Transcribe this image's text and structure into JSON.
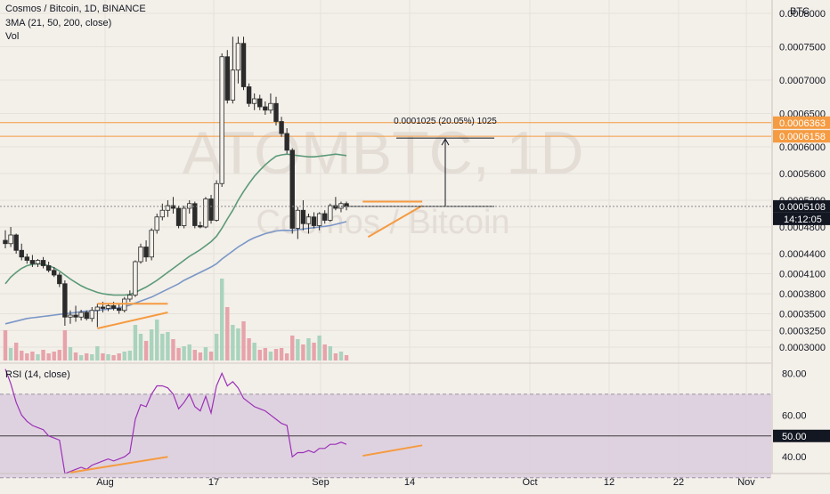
{
  "header": {
    "symbol_line": "Cosmos / Bitcoin, 1D, BINANCE",
    "indicator_line": "3MA (21, 50, 200, close)",
    "volume_label": "Vol",
    "watermark_ticker": "ATOMBTC, 1D",
    "watermark_name": "Cosmos / Bitcoin",
    "currency": "BTC",
    "rsi_label": "RSI (14, close)"
  },
  "chart_data": [
    {
      "type": "candlestick",
      "title": "Cosmos / Bitcoin, 1D, BINANCE",
      "yunit": "BTC",
      "ylim": [
        0.00028,
        0.00082
      ],
      "y_ticks": [
        "0.0003000",
        "0.0003250",
        "0.0003500",
        "0.0003800",
        "0.0004100",
        "0.0004400",
        "0.0004800",
        "0.0005200",
        "0.0005600",
        "0.0006000",
        "0.0006500",
        "0.0007000",
        "0.0007500",
        "0.0008000"
      ],
      "y_tick_values": [
        0.0003,
        0.000325,
        0.00035,
        0.00038,
        0.00041,
        0.00044,
        0.00048,
        0.00052,
        0.00056,
        0.0006,
        0.00065,
        0.0007,
        0.00075,
        0.0008
      ],
      "x_ticks": [
        "Aug",
        "17",
        "Sep",
        "14",
        "Oct",
        "12",
        "22",
        "Nov"
      ],
      "candles": [
        [
          0.00046,
          0.000475,
          0.000448,
          0.000455
        ],
        [
          0.000455,
          0.00048,
          0.00045,
          0.000468
        ],
        [
          0.000468,
          0.00047,
          0.00044,
          0.000445
        ],
        [
          0.000445,
          0.000455,
          0.00043,
          0.000435
        ],
        [
          0.000435,
          0.00044,
          0.000425,
          0.00043
        ],
        [
          0.00043,
          0.000438,
          0.00042,
          0.000425
        ],
        [
          0.000425,
          0.000432,
          0.00042,
          0.00043
        ],
        [
          0.00043,
          0.000435,
          0.000418,
          0.000422
        ],
        [
          0.000422,
          0.000428,
          0.000412,
          0.000415
        ],
        [
          0.000415,
          0.00042,
          0.000405,
          0.000408
        ],
        [
          0.000408,
          0.000412,
          0.00039,
          0.000395
        ],
        [
          0.000395,
          0.0004,
          0.000332,
          0.000345
        ],
        [
          0.000345,
          0.000355,
          0.000335,
          0.000348
        ],
        [
          0.000348,
          0.000362,
          0.000338,
          0.000345
        ],
        [
          0.000345,
          0.000356,
          0.00034,
          0.000352
        ],
        [
          0.000352,
          0.000355,
          0.00034,
          0.000343
        ],
        [
          0.000343,
          0.00036,
          0.000338,
          0.000355
        ],
        [
          0.000355,
          0.000365,
          0.00033,
          0.00036
        ],
        [
          0.00036,
          0.000368,
          0.000352,
          0.000358
        ],
        [
          0.000358,
          0.000365,
          0.000354,
          0.000362
        ],
        [
          0.000362,
          0.000368,
          0.000355,
          0.000358
        ],
        [
          0.000358,
          0.000366,
          0.00035,
          0.000355
        ],
        [
          0.000355,
          0.000375,
          0.000352,
          0.000372
        ],
        [
          0.000372,
          0.000385,
          0.000368,
          0.000378
        ],
        [
          0.000378,
          0.00043,
          0.000375,
          0.000428
        ],
        [
          0.000428,
          0.000455,
          0.000425,
          0.00045
        ],
        [
          0.00045,
          0.00046,
          0.000428,
          0.000435
        ],
        [
          0.000435,
          0.000478,
          0.00043,
          0.000475
        ],
        [
          0.000475,
          0.0005,
          0.00047,
          0.000495
        ],
        [
          0.000495,
          0.000515,
          0.00049,
          0.000505
        ],
        [
          0.000505,
          0.00052,
          0.000495,
          0.000512
        ],
        [
          0.000512,
          0.000525,
          0.0005,
          0.000508
        ],
        [
          0.000508,
          0.000512,
          0.000478,
          0.000482
        ],
        [
          0.000482,
          0.000512,
          0.000478,
          0.000508
        ],
        [
          0.000508,
          0.00052,
          0.0005,
          0.000515
        ],
        [
          0.000515,
          0.000518,
          0.000478,
          0.000482
        ],
        [
          0.000482,
          0.000488,
          0.000478,
          0.00048
        ],
        [
          0.00048,
          0.000525,
          0.000478,
          0.000522
        ],
        [
          0.000522,
          0.000528,
          0.000485,
          0.00049
        ],
        [
          0.00049,
          0.00055,
          0.000488,
          0.000545
        ],
        [
          0.000545,
          0.00074,
          0.00054,
          0.000735
        ],
        [
          0.000735,
          0.000745,
          0.000665,
          0.00067
        ],
        [
          0.00067,
          0.000765,
          0.000665,
          0.000715
        ],
        [
          0.000715,
          0.000765,
          0.000695,
          0.000755
        ],
        [
          0.000755,
          0.000765,
          0.000685,
          0.00069
        ],
        [
          0.00069,
          0.000695,
          0.00066,
          0.000665
        ],
        [
          0.000665,
          0.00068,
          0.000655,
          0.000672
        ],
        [
          0.000672,
          0.000678,
          0.000655,
          0.00066
        ],
        [
          0.00066,
          0.000668,
          0.000648,
          0.000655
        ],
        [
          0.000655,
          0.00068,
          0.00065,
          0.000665
        ],
        [
          0.000665,
          0.000675,
          0.000632,
          0.000638
        ],
        [
          0.000638,
          0.000645,
          0.000615,
          0.00062
        ],
        [
          0.00062,
          0.000628,
          0.00059,
          0.000595
        ],
        [
          0.000595,
          0.000598,
          0.00047,
          0.000478
        ],
        [
          0.000478,
          0.00051,
          0.000462,
          0.000505
        ],
        [
          0.000505,
          0.00052,
          0.000475,
          0.000485
        ],
        [
          0.000485,
          0.0005,
          0.00047,
          0.000495
        ],
        [
          0.000495,
          0.000502,
          0.000478,
          0.000482
        ],
        [
          0.000482,
          0.000502,
          0.000475,
          0.0005
        ],
        [
          0.0005,
          0.000505,
          0.000485,
          0.00049
        ],
        [
          0.00049,
          0.000515,
          0.000488,
          0.000512
        ],
        [
          0.000512,
          0.000525,
          0.000505,
          0.000508
        ],
        [
          0.000508,
          0.000518,
          0.000502,
          0.000515
        ],
        [
          0.000515,
          0.000518,
          0.000505,
          0.000511
        ]
      ],
      "volume": [
        34,
        14,
        20,
        11,
        8,
        10,
        7,
        12,
        8,
        10,
        12,
        34,
        15,
        9,
        6,
        8,
        7,
        16,
        8,
        7,
        6,
        8,
        10,
        11,
        40,
        30,
        22,
        35,
        46,
        30,
        32,
        24,
        14,
        16,
        18,
        12,
        9,
        15,
        10,
        30,
        92,
        60,
        40,
        36,
        44,
        25,
        20,
        12,
        14,
        10,
        13,
        14,
        8,
        28,
        24,
        18,
        25,
        20,
        28,
        18,
        16,
        8,
        10,
        6
      ],
      "ma": [
        {
          "period": 21,
          "color": "#5b9a78",
          "values": [
            0.000395,
            0.000405,
            0.000412,
            0.000418,
            0.000422,
            0.000424,
            0.000425,
            0.000424,
            0.000422,
            0.000419,
            0.000414,
            0.000408,
            0.000402,
            0.000397,
            0.000392,
            0.000388,
            0.000385,
            0.000382,
            0.00038,
            0.000379,
            0.000378,
            0.000378,
            0.000378,
            0.000379,
            0.000382,
            0.000386,
            0.00039,
            0.000395,
            0.0004,
            0.000406,
            0.000412,
            0.000418,
            0.000424,
            0.00043,
            0.000436,
            0.000441,
            0.000446,
            0.000452,
            0.000458,
            0.000466,
            0.000478,
            0.000492,
            0.000505,
            0.00052,
            0.000533,
            0.000545,
            0.000556,
            0.000565,
            0.000573,
            0.00058,
            0.000586,
            0.000588,
            0.000589,
            0.000588,
            0.000587,
            0.000586,
            0.000585,
            0.000585,
            0.000586,
            0.000587,
            0.000588,
            0.000589,
            0.000588,
            0.000587
          ]
        },
        {
          "period": 50,
          "color": "#7a97c7",
          "values": [
            0.000335,
            0.000337,
            0.000339,
            0.000341,
            0.000343,
            0.000344,
            0.000345,
            0.000346,
            0.000347,
            0.000348,
            0.000349,
            0.00035,
            0.000351,
            0.000352,
            0.000353,
            0.000354,
            0.000354,
            0.000355,
            0.000356,
            0.000357,
            0.000358,
            0.000359,
            0.000361,
            0.000363,
            0.000366,
            0.000369,
            0.000372,
            0.000375,
            0.000379,
            0.000383,
            0.000387,
            0.000391,
            0.000395,
            0.0004,
            0.000404,
            0.000408,
            0.000412,
            0.000416,
            0.00042,
            0.000425,
            0.000432,
            0.000438,
            0.000444,
            0.00045,
            0.000455,
            0.00046,
            0.000464,
            0.000467,
            0.00047,
            0.000472,
            0.000474,
            0.000475,
            0.000475,
            0.000475,
            0.000476,
            0.000477,
            0.000478,
            0.000479,
            0.00048,
            0.000481,
            0.000482,
            0.000484,
            0.000486,
            0.000488
          ]
        }
      ],
      "horizontal_lines": [
        0.0006363,
        0.0006158
      ],
      "price_labels": [
        {
          "value": 0.0006363,
          "text": "0.0006363",
          "color": "#f59b41"
        },
        {
          "value": 0.0006158,
          "text": "0.0006158",
          "color": "#f59b41"
        },
        {
          "value": 0.0005108,
          "text": "0.0005108",
          "color": "#131722"
        }
      ],
      "countdown": "14:12:05",
      "measure_label": "0.0001025 (20.05%) 1025",
      "trend_lines": [
        {
          "from": [
            17,
            0.000365
          ],
          "to": [
            30,
            0.000365
          ]
        },
        {
          "from": [
            17,
            0.000328
          ],
          "to": [
            30,
            0.000352
          ]
        },
        {
          "from": [
            66,
            0.000518
          ],
          "to": [
            77,
            0.000518
          ]
        },
        {
          "from": [
            67,
            0.000465
          ],
          "to": [
            77,
            0.000512
          ]
        }
      ]
    },
    {
      "type": "line",
      "title": "RSI (14, close)",
      "ylim": [
        32,
        84
      ],
      "y_ticks": [
        "40.00",
        "60.00",
        "80.00"
      ],
      "y_tick_values": [
        40,
        60,
        80
      ],
      "band": [
        30,
        70
      ],
      "level_label": "50.00",
      "level": 50,
      "series": [
        {
          "values": [
            82,
            75,
            66,
            60,
            57,
            55,
            54,
            53,
            50,
            49,
            48,
            32,
            33,
            34,
            35,
            34,
            36,
            37,
            38,
            39,
            38,
            39,
            40,
            42,
            58,
            65,
            64,
            70,
            74,
            74,
            73,
            70,
            63,
            66,
            70,
            64,
            62,
            69,
            61,
            74,
            80,
            74,
            76,
            73,
            68,
            66,
            64,
            63,
            62,
            60,
            58,
            56,
            55,
            40,
            42,
            42,
            43,
            42,
            44,
            44,
            46,
            46,
            47,
            46
          ]
        }
      ],
      "trend_lines": [
        {
          "from": [
            12,
            32.5
          ],
          "to": [
            30,
            40
          ]
        },
        {
          "from": [
            66,
            40.5
          ],
          "to": [
            77,
            45.5
          ]
        }
      ]
    }
  ],
  "colors": {
    "up": "#f3efe9",
    "down": "#2b2b2b",
    "wick": "#2b2b2b",
    "vol_up": "#a9d3bd",
    "vol_down": "#e7a3aa",
    "accent": "#f59b41",
    "rsi_line": "#9b30b8",
    "rsi_band": "#d8c8dc"
  }
}
